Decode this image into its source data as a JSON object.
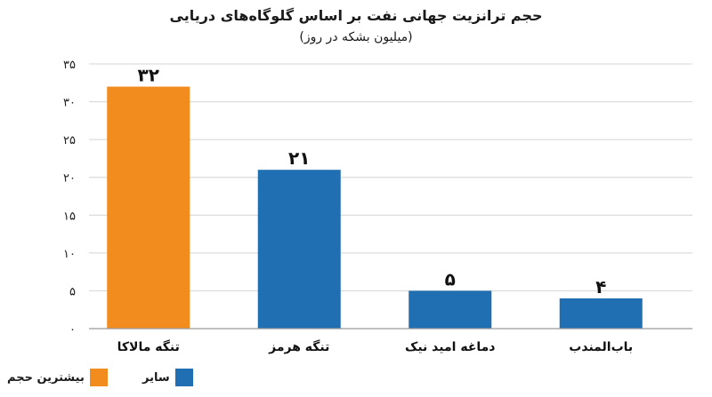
{
  "chart_data": {
    "type": "bar",
    "title": "حجم ترانزیت جهانی نفت بر اساس گلوگاه‌های دریایی",
    "subtitle": "(میلیون بشکه در روز)",
    "categories": [
      "تنگه مالاکا",
      "تنگه هرمز",
      "دماغه امید نیک",
      "باب‌المندب"
    ],
    "values": [
      32,
      21,
      5,
      4
    ],
    "value_labels": [
      "۳۲",
      "۲۱",
      "۵",
      "۴"
    ],
    "ylim": [
      0,
      35
    ],
    "yticks": [
      0,
      5,
      10,
      15,
      20,
      25,
      30,
      35
    ],
    "ytick_labels": [
      "۰",
      "۵",
      "۱۰",
      "۱۵",
      "۲۰",
      "۲۵",
      "۳۰",
      "۳۵"
    ],
    "bar_groups": [
      "max",
      "other",
      "other",
      "other"
    ],
    "grid": true,
    "legend": [
      {
        "key": "max",
        "label": "بیشترین حجم",
        "color": "#F28C1E"
      },
      {
        "key": "other",
        "label": "سایر",
        "color": "#1F6FB2"
      }
    ],
    "legend_position": "bottom-left"
  }
}
